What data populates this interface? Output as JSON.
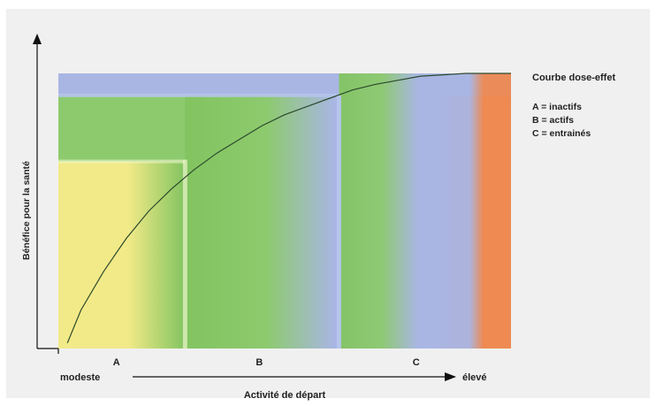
{
  "chart_data": {
    "type": "line",
    "title": "",
    "xlabel": "Activité de départ",
    "ylabel": "Bénéfice pour la santé",
    "x_axis_start_label": "modeste",
    "x_axis_end_label": "élevé",
    "grid": false,
    "xlim": [
      0,
      100
    ],
    "ylim": [
      0,
      100
    ],
    "zones": [
      {
        "label": "A",
        "x_range": [
          0,
          28
        ],
        "level": 68,
        "color": "#f2ea88"
      },
      {
        "label": "B",
        "x_range": [
          28,
          62
        ],
        "level": 92,
        "color": "#8dca6e"
      },
      {
        "label": "C",
        "x_range": [
          62,
          100
        ],
        "level": 100,
        "color": "#a9b6e4"
      }
    ],
    "gradient_colors": {
      "yellow": "#f2ea88",
      "green": "#8dca6e",
      "blue": "#a9b6e4",
      "orange": "#ee8a52",
      "dark_green": "#82c460",
      "light_blue": "#b7c6ef"
    },
    "series": [
      {
        "name": "Courbe dose-effet",
        "color": "#2c4a2c",
        "x": [
          2,
          5,
          10,
          15,
          20,
          25,
          30,
          35,
          40,
          45,
          50,
          55,
          60,
          65,
          70,
          75,
          80,
          85,
          90,
          95,
          100
        ],
        "y": [
          2,
          14,
          28,
          40,
          50,
          58,
          65,
          71,
          76,
          81,
          85,
          88,
          91,
          94,
          96,
          97.5,
          99,
          99.5,
          100,
          100,
          100
        ]
      }
    ],
    "legend": {
      "placement": "right",
      "title": "Courbe dose-effet",
      "entries": [
        "A = inactifs",
        "B = actifs",
        "C = entrainés"
      ]
    }
  }
}
